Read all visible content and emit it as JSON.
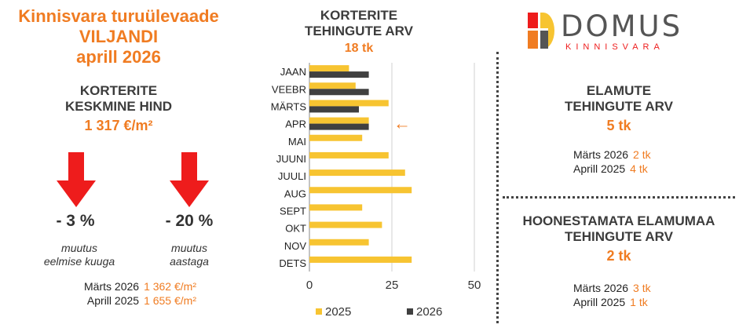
{
  "header": {
    "line1": "Kinnisvara turuülevaade",
    "line2": "VILJANDI",
    "line3": "aprill 2026"
  },
  "avg_price": {
    "title1": "KORTERITE",
    "title2": "KESKMINE HIND",
    "value": "1 317 €/m²",
    "change_month": {
      "value": "- 3 %",
      "label1": "muutus",
      "label2": "eelmise kuuga"
    },
    "change_year": {
      "value": "- 20 %",
      "label1": "muutus",
      "label2": "aastaga"
    },
    "compare": [
      {
        "label": "Märts 2026",
        "value": "1 362 €/m²"
      },
      {
        "label": "Aprill 2025",
        "value": "1 655 €/m²"
      }
    ]
  },
  "apartments": {
    "title1": "KORTERITE",
    "title2": "TEHINGUTE ARV",
    "value": "18 tk"
  },
  "logo": {
    "name": "DOMUS",
    "sub": "KINNISVARA"
  },
  "houses": {
    "title1": "ELAMUTE",
    "title2": "TEHINGUTE ARV",
    "value": "5 tk",
    "compare": [
      {
        "label": "Märts 2026",
        "value": "2 tk"
      },
      {
        "label": "Aprill 2025",
        "value": "4 tk"
      }
    ]
  },
  "land": {
    "title1": "HOONESTAMATA ELAMUMAA",
    "title2": "TEHINGUTE ARV",
    "value": "2 tk",
    "compare": [
      {
        "label": "Märts 2026",
        "value": "3 tk"
      },
      {
        "label": "Aprill 2025",
        "value": "1 tk"
      }
    ]
  },
  "colors": {
    "accent": "#f07c22",
    "series_2025": "#f7c431",
    "series_2026": "#404040",
    "arrow": "#ee1c1c"
  },
  "chart_data": {
    "type": "bar",
    "orientation": "horizontal",
    "categories": [
      "JAAN",
      "VEEBR",
      "MÄRTS",
      "APR",
      "MAI",
      "JUUNI",
      "JUULI",
      "AUG",
      "SEPT",
      "OKT",
      "NOV",
      "DETS"
    ],
    "series": [
      {
        "name": "2025",
        "values": [
          12,
          14,
          24,
          18,
          16,
          24,
          29,
          31,
          16,
          22,
          18,
          31
        ]
      },
      {
        "name": "2026",
        "values": [
          18,
          18,
          15,
          18,
          null,
          null,
          null,
          null,
          null,
          null,
          null,
          null
        ]
      }
    ],
    "xlim": [
      0,
      50
    ],
    "xticks": [
      "0",
      "25",
      "50"
    ],
    "grid": true,
    "legend": "bottom",
    "annotation": "←"
  }
}
